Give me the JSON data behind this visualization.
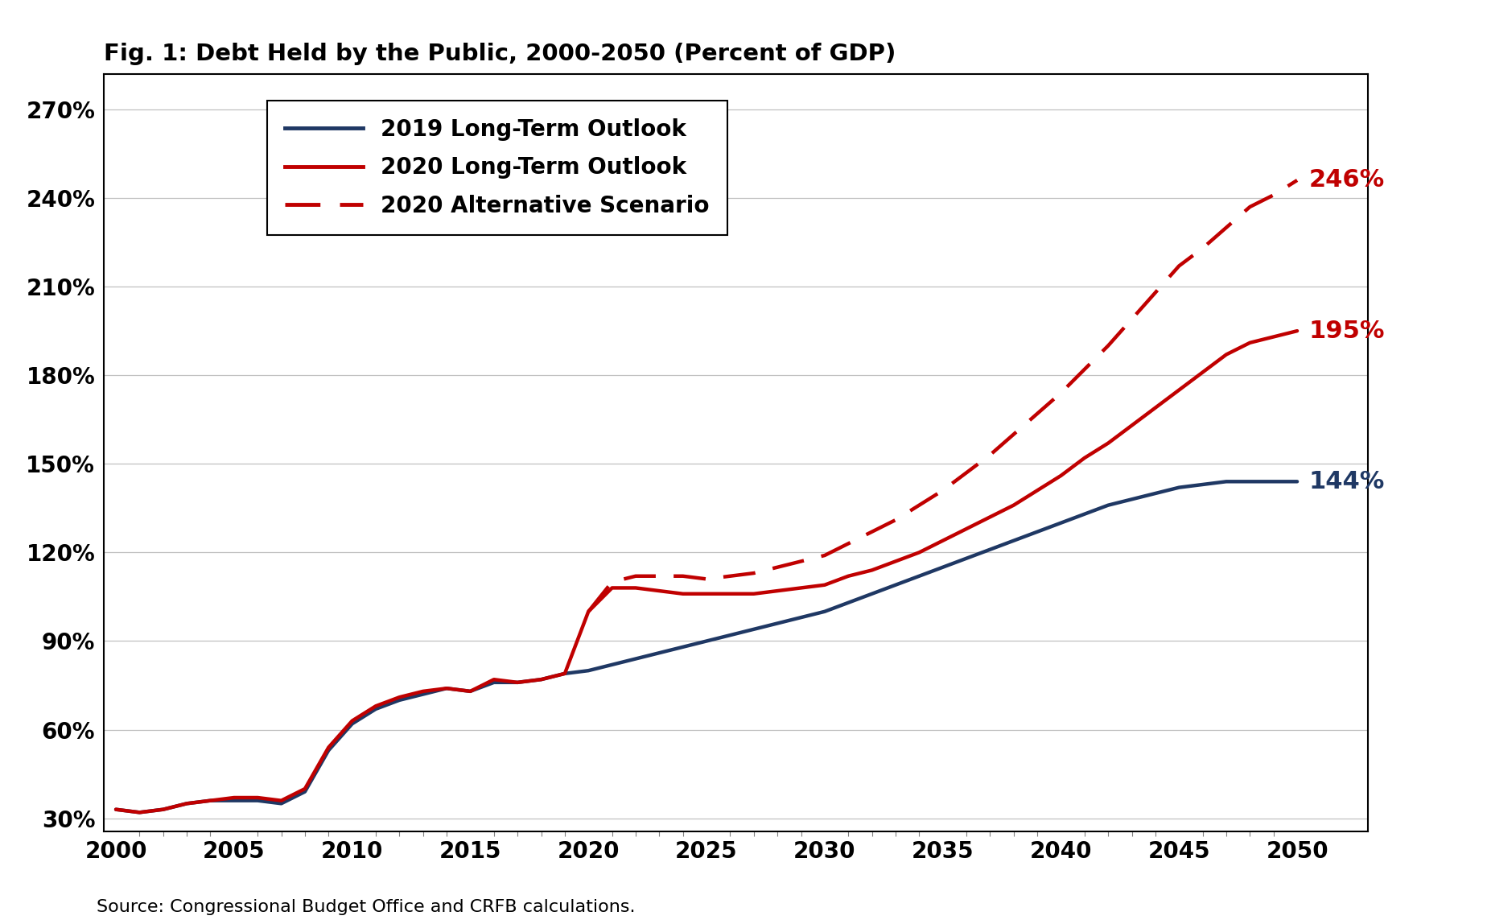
{
  "title": "Fig. 1: Debt Held by the Public, 2000-2050 (Percent of GDP)",
  "source": "Source: Congressional Budget Office and CRFB calculations.",
  "yticks": [
    0.3,
    0.6,
    0.9,
    1.2,
    1.5,
    1.8,
    2.1,
    2.4,
    2.7
  ],
  "xticks": [
    2000,
    2005,
    2010,
    2015,
    2020,
    2025,
    2030,
    2035,
    2040,
    2045,
    2050
  ],
  "line2019_x": [
    2000,
    2001,
    2002,
    2003,
    2004,
    2005,
    2006,
    2007,
    2008,
    2009,
    2010,
    2011,
    2012,
    2013,
    2014,
    2015,
    2016,
    2017,
    2018,
    2019,
    2020,
    2021,
    2022,
    2023,
    2024,
    2025,
    2026,
    2027,
    2028,
    2029,
    2030,
    2031,
    2032,
    2033,
    2034,
    2035,
    2036,
    2037,
    2038,
    2039,
    2040,
    2041,
    2042,
    2043,
    2044,
    2045,
    2046,
    2047,
    2048,
    2049,
    2050
  ],
  "line2019_y": [
    0.33,
    0.32,
    0.33,
    0.35,
    0.36,
    0.36,
    0.36,
    0.35,
    0.39,
    0.53,
    0.62,
    0.67,
    0.7,
    0.72,
    0.74,
    0.73,
    0.76,
    0.76,
    0.77,
    0.79,
    0.8,
    0.82,
    0.84,
    0.86,
    0.88,
    0.9,
    0.92,
    0.94,
    0.96,
    0.98,
    1.0,
    1.03,
    1.06,
    1.09,
    1.12,
    1.15,
    1.18,
    1.21,
    1.24,
    1.27,
    1.3,
    1.33,
    1.36,
    1.38,
    1.4,
    1.42,
    1.43,
    1.44,
    1.44,
    1.44,
    1.44
  ],
  "line2020_x": [
    2000,
    2001,
    2002,
    2003,
    2004,
    2005,
    2006,
    2007,
    2008,
    2009,
    2010,
    2011,
    2012,
    2013,
    2014,
    2015,
    2016,
    2017,
    2018,
    2019,
    2020,
    2021,
    2022,
    2023,
    2024,
    2025,
    2026,
    2027,
    2028,
    2029,
    2030,
    2031,
    2032,
    2033,
    2034,
    2035,
    2036,
    2037,
    2038,
    2039,
    2040,
    2041,
    2042,
    2043,
    2044,
    2045,
    2046,
    2047,
    2048,
    2049,
    2050
  ],
  "line2020_y": [
    0.33,
    0.32,
    0.33,
    0.35,
    0.36,
    0.37,
    0.37,
    0.36,
    0.4,
    0.54,
    0.63,
    0.68,
    0.71,
    0.73,
    0.74,
    0.73,
    0.77,
    0.76,
    0.77,
    0.79,
    1.0,
    1.08,
    1.08,
    1.07,
    1.06,
    1.06,
    1.06,
    1.06,
    1.07,
    1.08,
    1.09,
    1.12,
    1.14,
    1.17,
    1.2,
    1.24,
    1.28,
    1.32,
    1.36,
    1.41,
    1.46,
    1.52,
    1.57,
    1.63,
    1.69,
    1.75,
    1.81,
    1.87,
    1.91,
    1.93,
    1.95
  ],
  "line2020alt_x": [
    2020,
    2021,
    2022,
    2023,
    2024,
    2025,
    2026,
    2027,
    2028,
    2029,
    2030,
    2031,
    2032,
    2033,
    2034,
    2035,
    2036,
    2037,
    2038,
    2039,
    2040,
    2041,
    2042,
    2043,
    2044,
    2045,
    2046,
    2047,
    2048,
    2049,
    2050
  ],
  "line2020alt_y": [
    1.0,
    1.1,
    1.12,
    1.12,
    1.12,
    1.11,
    1.12,
    1.13,
    1.15,
    1.17,
    1.19,
    1.23,
    1.27,
    1.31,
    1.36,
    1.41,
    1.47,
    1.53,
    1.6,
    1.67,
    1.74,
    1.82,
    1.9,
    1.99,
    2.08,
    2.17,
    2.23,
    2.3,
    2.37,
    2.41,
    2.46
  ],
  "color_2019": "#1f3864",
  "color_2020": "#c00000",
  "color_alt": "#c00000",
  "label_2019": "2019 Long-Term Outlook",
  "label_2020": "2020 Long-Term Outlook",
  "label_alt": "2020 Alternative Scenario",
  "annotation_2019": "144%",
  "annotation_2020": "195%",
  "annotation_alt": "246%",
  "linewidth": 3.2,
  "background_color": "#ffffff"
}
